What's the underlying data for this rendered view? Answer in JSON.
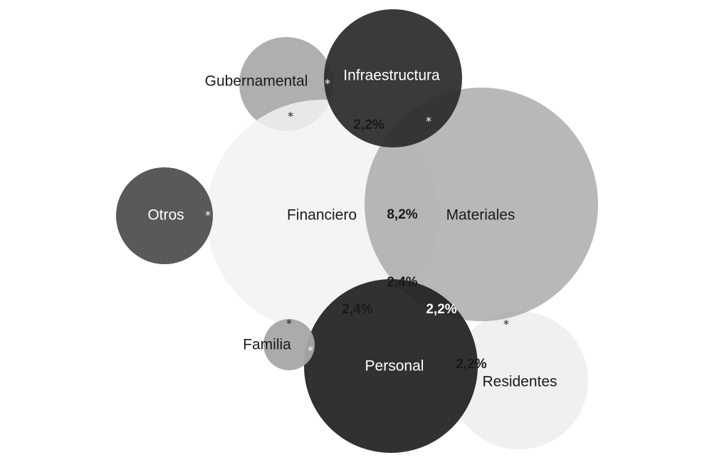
{
  "sets": [
    {
      "id": "financiero",
      "label": "Financiero",
      "color": "#f2f2f2",
      "label_color": "#1a1a1a"
    },
    {
      "id": "materiales",
      "label": "Materiales",
      "color": "#a6a6a6",
      "label_color": "#1a1a1a"
    },
    {
      "id": "infraestructura",
      "label": "Infraestructura",
      "color": "#2b2b2b",
      "label_color": "#ffffff"
    },
    {
      "id": "gubernamental",
      "label": "Gubernamental",
      "color": "#a6a6a6",
      "label_color": "#1a1a1a"
    },
    {
      "id": "otros",
      "label": "Otros",
      "color": "#595959",
      "label_color": "#ffffff"
    },
    {
      "id": "personal",
      "label": "Personal",
      "color": "#1f1f1f",
      "label_color": "#ffffff"
    },
    {
      "id": "familia",
      "label": "Familia",
      "color": "#a6a6a6",
      "label_color": "#1a1a1a"
    },
    {
      "id": "residentes",
      "label": "Residentes",
      "color": "#efefef",
      "label_color": "#1a1a1a"
    }
  ],
  "overlaps": [
    {
      "sets": [
        "financiero",
        "materiales"
      ],
      "label": "8,2%",
      "color": "#1a1a1a"
    },
    {
      "sets": [
        "financiero",
        "infraestructura"
      ],
      "label": "2,2%",
      "color": "#1a1a1a"
    },
    {
      "sets": [
        "financiero",
        "materiales",
        "personal"
      ],
      "label": "2,4%",
      "color": "#1a1a1a"
    },
    {
      "sets": [
        "financiero",
        "personal"
      ],
      "label": "2,4%",
      "color": "#1a1a1a"
    },
    {
      "sets": [
        "materiales",
        "personal"
      ],
      "label": "2,2%",
      "color": "#ffffff"
    },
    {
      "sets": [
        "personal",
        "residentes"
      ],
      "label": "2,2%",
      "color": "#1a1a1a"
    },
    {
      "sets": [
        "gubernamental",
        "infraestructura"
      ],
      "label": "*",
      "color": "#ffffff"
    },
    {
      "sets": [
        "gubernamental",
        "financiero"
      ],
      "label": "*",
      "color": "#1a1a1a"
    },
    {
      "sets": [
        "infraestructura",
        "materiales"
      ],
      "label": "*",
      "color": "#ffffff"
    },
    {
      "sets": [
        "otros",
        "financiero"
      ],
      "label": "*",
      "color": "#ffffff"
    },
    {
      "sets": [
        "familia",
        "financiero"
      ],
      "label": "*",
      "color": "#1a1a1a"
    },
    {
      "sets": [
        "familia",
        "personal"
      ],
      "label": "*",
      "color": "#ffffff"
    },
    {
      "sets": [
        "materiales",
        "residentes"
      ],
      "label": "*",
      "color": "#1a1a1a"
    }
  ]
}
